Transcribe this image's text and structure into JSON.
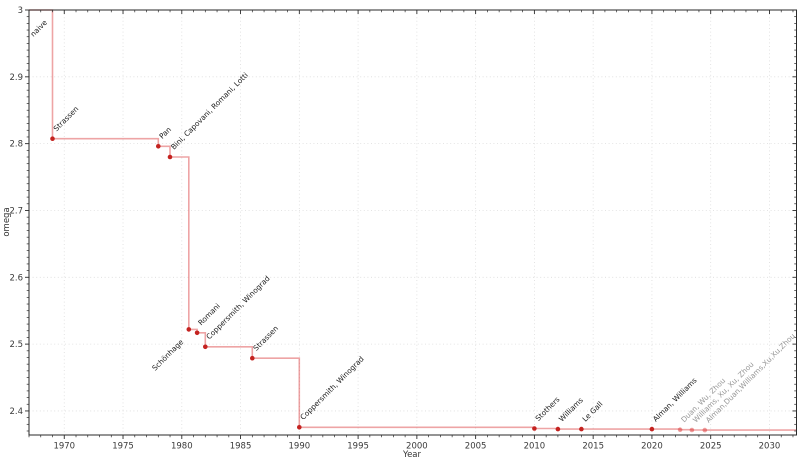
{
  "chart_data": {
    "type": "line",
    "subtype": "step-post",
    "title": "",
    "xlabel": "Year",
    "ylabel": "omega",
    "xlim": [
      1967,
      2032.3
    ],
    "ylim": [
      2.364,
      3.0
    ],
    "grid": true,
    "legend": "none",
    "x_major_ticks": [
      1970,
      1975,
      1980,
      1985,
      1990,
      1995,
      2000,
      2005,
      2010,
      2015,
      2020,
      2025,
      2030
    ],
    "x_tick_labels": [
      "1970",
      "1975",
      "1980",
      "1985",
      "1990",
      "1995",
      "2000",
      "2005",
      "2010",
      "2015",
      "2020",
      "2025",
      "2030"
    ],
    "x_minor_step": 1,
    "y_major_ticks": [
      2.4,
      2.5,
      2.6,
      2.7,
      2.8,
      2.9,
      3.0
    ],
    "y_tick_labels": [
      "2.4",
      "2.5",
      "2.6",
      "2.7",
      "2.8",
      "2.9",
      "3"
    ],
    "y_minor_step": 0.01,
    "line_extends_to_right_edge": true,
    "colors": {
      "line": "rgba(214,39,40,0.42)",
      "marker": "#c42320",
      "marker_tentative": "rgba(214,39,40,0.45)",
      "label": "#1c1c1c",
      "label_tentative": "#979797",
      "grid": "#dcdcdc",
      "axis": "#2a2a2a",
      "tick_label": "#3a3a3a"
    },
    "points": [
      {
        "x": 1967,
        "y": 3.0,
        "label": "naive",
        "marker": false,
        "label_pos": "below",
        "label_anchor_x": 1969,
        "status": "confirmed"
      },
      {
        "x": 1969,
        "y": 2.8074,
        "label": "Strassen",
        "marker": true,
        "label_pos": "above",
        "status": "confirmed"
      },
      {
        "x": 1978,
        "y": 2.796,
        "label": "Pan",
        "marker": true,
        "label_pos": "above",
        "status": "confirmed"
      },
      {
        "x": 1979,
        "y": 2.78,
        "label": "Bini, Capovani, Romani, Lotti",
        "marker": true,
        "label_pos": "above",
        "status": "confirmed"
      },
      {
        "x": 1980.6,
        "y": 2.522,
        "label": "Schönhage",
        "marker": true,
        "label_pos": "below",
        "status": "confirmed"
      },
      {
        "x": 1981.3,
        "y": 2.517,
        "label": "Romani",
        "marker": true,
        "label_pos": "above",
        "status": "confirmed"
      },
      {
        "x": 1982,
        "y": 2.496,
        "label": "Coppersmith, Winograd",
        "marker": true,
        "label_pos": "above",
        "status": "confirmed"
      },
      {
        "x": 1986,
        "y": 2.479,
        "label": "Strassen",
        "marker": true,
        "label_pos": "above",
        "status": "confirmed"
      },
      {
        "x": 1990,
        "y": 2.3755,
        "label": "Coppersmith, Winograd",
        "marker": true,
        "label_pos": "above",
        "status": "confirmed"
      },
      {
        "x": 2010,
        "y": 2.3737,
        "label": "Stothers",
        "marker": true,
        "label_pos": "above",
        "status": "confirmed"
      },
      {
        "x": 2012,
        "y": 2.3729,
        "label": "Williams",
        "marker": true,
        "label_pos": "above",
        "status": "confirmed"
      },
      {
        "x": 2014,
        "y": 2.3728639,
        "label": "Le Gall",
        "marker": true,
        "label_pos": "above",
        "status": "confirmed"
      },
      {
        "x": 2020,
        "y": 2.3728596,
        "label": "Alman, Williams",
        "marker": true,
        "label_pos": "above",
        "status": "confirmed"
      },
      {
        "x": 2022.4,
        "y": 2.371866,
        "label": "Duan, Wu, Zhou",
        "marker": true,
        "label_pos": "above",
        "status": "tentative"
      },
      {
        "x": 2023.4,
        "y": 2.371552,
        "label": "Williams, Xu, Xu, Zhou",
        "marker": true,
        "label_pos": "above",
        "status": "tentative"
      },
      {
        "x": 2024.5,
        "y": 2.371339,
        "label": "Alman,Duan,Williams,Xu,Xu,Zhou",
        "marker": true,
        "label_pos": "above",
        "status": "tentative"
      }
    ]
  }
}
